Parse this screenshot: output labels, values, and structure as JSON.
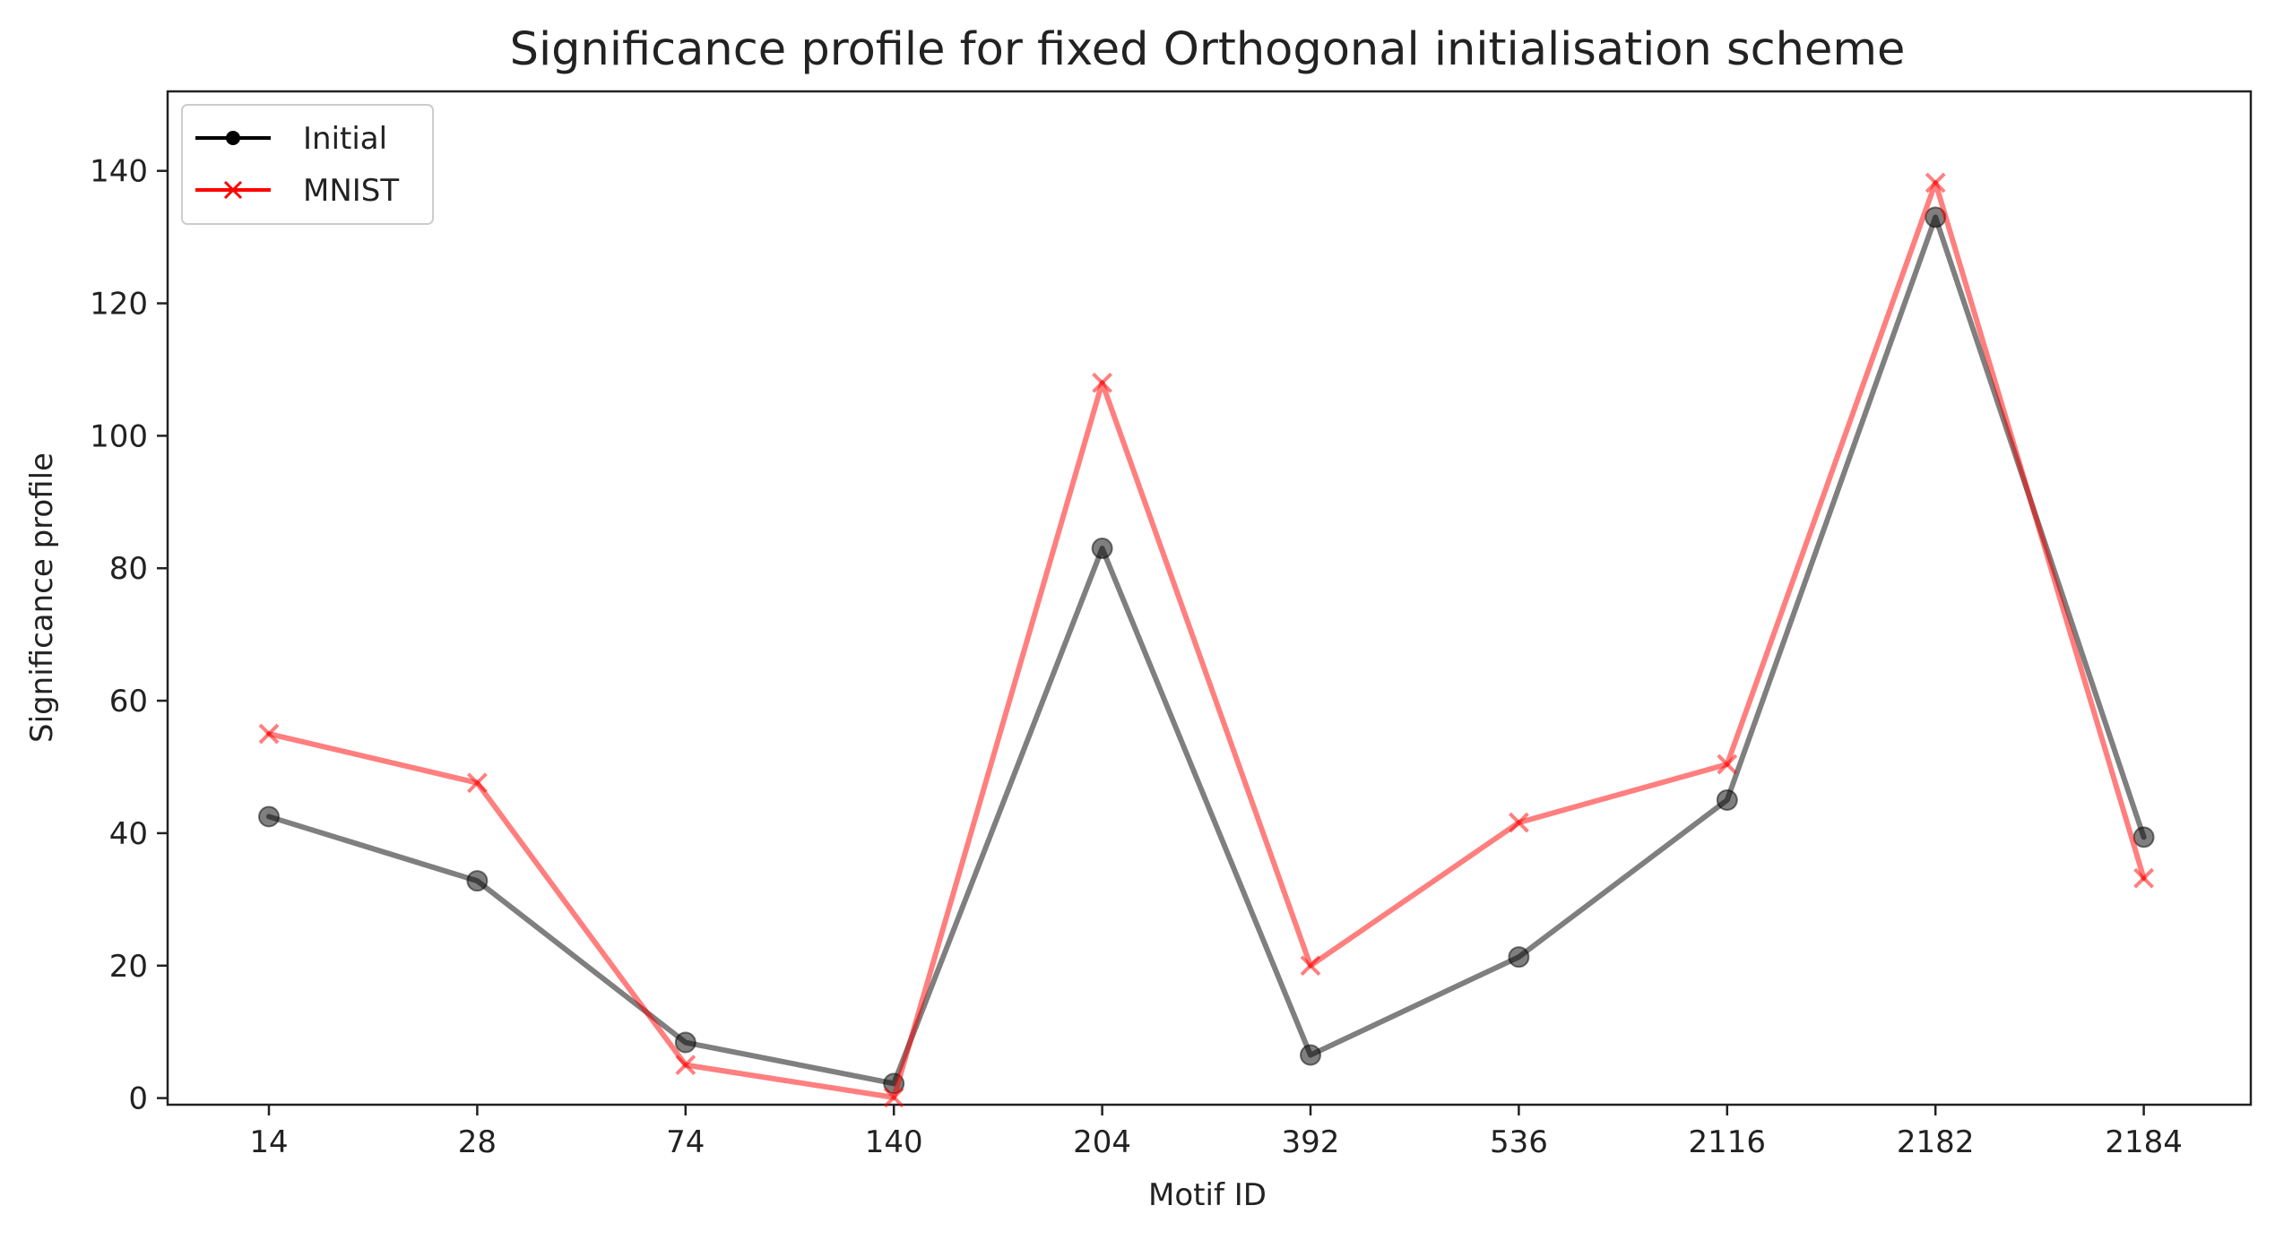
{
  "chart_data": {
    "type": "line",
    "title": "Significance profile for fixed Orthogonal initialisation scheme",
    "xlabel": "Motif ID",
    "ylabel": "Significance profile",
    "categories": [
      "14",
      "28",
      "74",
      "140",
      "204",
      "392",
      "536",
      "2116",
      "2182",
      "2184"
    ],
    "ylim": [
      -1,
      152
    ],
    "yticks": [
      0,
      20,
      40,
      60,
      80,
      100,
      120,
      140
    ],
    "grid": false,
    "legend_position": "top-left",
    "series": [
      {
        "name": "Initial",
        "marker": "circle",
        "color": "#000000",
        "values": [
          42.5,
          32.8,
          8.4,
          2.2,
          83.0,
          6.5,
          21.3,
          45.0,
          133.0,
          39.4
        ]
      },
      {
        "name": "MNIST",
        "marker": "x",
        "color": "#ff0000",
        "values": [
          55.0,
          47.6,
          5.0,
          0.1,
          108.0,
          20.0,
          41.6,
          50.4,
          138.2,
          33.2
        ]
      }
    ]
  }
}
